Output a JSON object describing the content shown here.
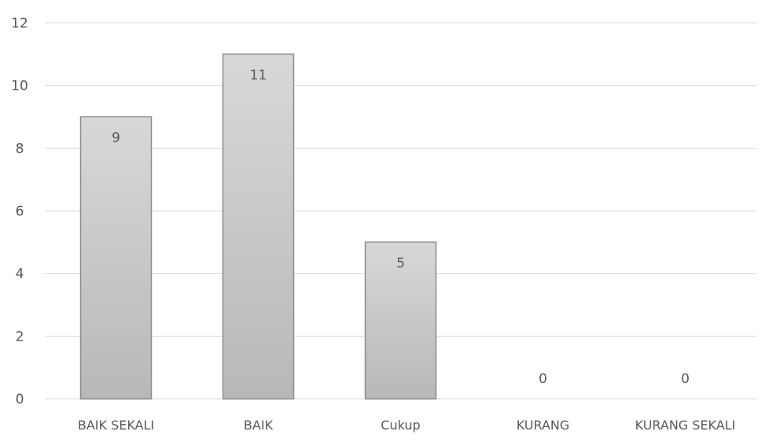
{
  "chart_data": {
    "type": "bar",
    "categories": [
      "BAIK SEKALI",
      "BAIK",
      "Cukup",
      "KURANG",
      "KURANG SEKALI"
    ],
    "values": [
      9,
      11,
      5,
      0,
      0
    ],
    "data_labels": [
      "9",
      "11",
      "5",
      "0",
      "0"
    ],
    "y_ticks": [
      "0",
      "2",
      "4",
      "6",
      "8",
      "10",
      "12"
    ],
    "ylim": [
      0,
      12
    ],
    "grid": true,
    "legend": "none",
    "colors": {
      "bar_fill_top": "#d8d8d8",
      "bar_fill_bottom": "#b8b8b8",
      "bar_stroke": "#8c8c8c",
      "gridline": "#d9d9d9",
      "text": "#595959"
    }
  }
}
